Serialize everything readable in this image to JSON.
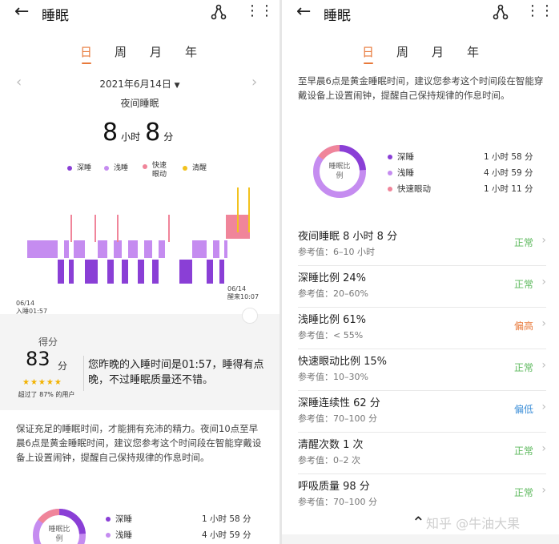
{
  "colors": {
    "deep": "#8a3fd6",
    "light": "#c58cf0",
    "rem": "#f0859a",
    "awake": "#f2c21e",
    "accent": "#e8793a",
    "normal": "#5cb85c",
    "high": "#e8793a",
    "low": "#3d8fd8"
  },
  "app": {
    "title": "睡眠",
    "back_icon": "arrow-left-icon",
    "share_icon": "share-icon",
    "more_icon": "more-icon"
  },
  "tabs": [
    "日",
    "周",
    "月",
    "年"
  ],
  "left": {
    "date": "2021年6月14日",
    "night_label": "夜间睡眠",
    "hours": "8",
    "hours_unit": "小时",
    "minutes": "8",
    "minutes_unit": "分",
    "legend": {
      "deep": "深睡",
      "light": "浅睡",
      "rem": "快速眼动",
      "awake": "清醒"
    },
    "sleep_time_date": "06/14",
    "sleep_time": "入睡01:57",
    "wake_time_date": "06/14",
    "wake_time": "醒来10:07",
    "score_label": "得分",
    "score": "83",
    "score_unit": "分",
    "stars": "★★★★★",
    "star_rating": 4.5,
    "beat_text": "超过了 87% 的用户",
    "comment": "您昨晚的入睡时间是01:57，睡得有点晚，不过睡眠质量还不错。",
    "advice": "保证充足的睡眠时间，才能拥有充沛的精力。夜间10点至早晨6点是黄金睡眠时间，建议您参考这个时间段在智能穿戴设备上设置闹钟，提醒自己保持规律的作息时间。",
    "ring_label": "睡眠比例",
    "props": [
      {
        "name": "深睡",
        "value": "1 小时 58 分"
      },
      {
        "name": "浅睡",
        "value": "4 小时 59 分"
      }
    ]
  },
  "right": {
    "advice": "至早晨6点是黄金睡眠时间，建议您参考这个时间段在智能穿戴设备上设置闹钟，提醒自己保持规律的作息时间。",
    "ring_label": "睡眠比例",
    "props": [
      {
        "name": "深睡",
        "value": "1 小时 58 分"
      },
      {
        "name": "浅睡",
        "value": "4 小时 59 分"
      },
      {
        "name": "快速眼动",
        "value": "1 小时 11 分"
      }
    ],
    "metrics": [
      {
        "title": "夜间睡眠  8 小时 8 分",
        "ref": "参考值：6–10 小时",
        "status": "正常",
        "kind": "normal"
      },
      {
        "title": "深睡比例  24%",
        "ref": "参考值：20–60%",
        "status": "正常",
        "kind": "normal"
      },
      {
        "title": "浅睡比例  61%",
        "ref": "参考值：< 55%",
        "status": "偏高",
        "kind": "high"
      },
      {
        "title": "快速眼动比例  15%",
        "ref": "参考值：10–30%",
        "status": "正常",
        "kind": "normal"
      },
      {
        "title": "深睡连续性  62 分",
        "ref": "参考值：70–100 分",
        "status": "偏低",
        "kind": "low"
      },
      {
        "title": "清醒次数  1 次",
        "ref": "参考值：0–2 次",
        "status": "正常",
        "kind": "normal"
      },
      {
        "title": "呼吸质量  98 分",
        "ref": "参考值：70–100 分",
        "status": "正常",
        "kind": "normal"
      }
    ],
    "watermark": "知乎 @牛油大果"
  },
  "chart_data": {
    "type": "bar",
    "title": "",
    "x_start": "01:57",
    "x_end": "10:07",
    "stages": [
      "深睡",
      "浅睡",
      "快速眼动",
      "清醒"
    ],
    "proportions": [
      {
        "stage": "深睡",
        "percent": 24,
        "duration": "1 小时 58 分"
      },
      {
        "stage": "浅睡",
        "percent": 61,
        "duration": "4 小时 59 分"
      },
      {
        "stage": "快速眼动",
        "percent": 15,
        "duration": "1 小时 11 分"
      }
    ]
  }
}
